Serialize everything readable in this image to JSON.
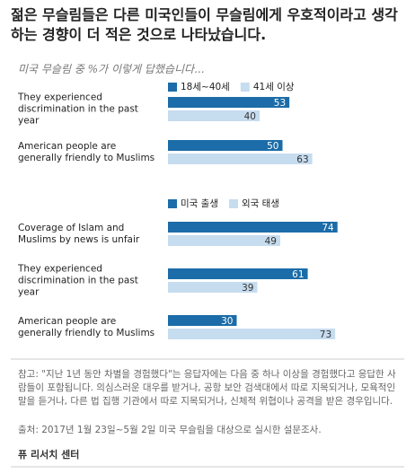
{
  "header": {
    "title": "젊은 무슬림들은 다른 미국인들이 무슬림에게 우호적이라고 생각하는 경향이 더 적은 것으로 나타났습니다.",
    "subtitle": "미국 무슬림 중 %가 이렇게 답했습니다..."
  },
  "chart_data": [
    {
      "type": "bar",
      "orientation": "horizontal",
      "categories": [
        "They experienced discrimination in the past year",
        "American people are generally friendly to Muslims"
      ],
      "series": [
        {
          "name": "18세~40세",
          "color": "#1b6ca8",
          "values": [
            53,
            50
          ]
        },
        {
          "name": "41세 이상",
          "color": "#c6dcef",
          "values": [
            40,
            63
          ]
        }
      ]
    },
    {
      "type": "bar",
      "orientation": "horizontal",
      "categories": [
        "Coverage of Islam and Muslims by news is unfair",
        "They experienced discrimination in the past year",
        "American people are generally friendly to Muslims"
      ],
      "series": [
        {
          "name": "미국 출생",
          "color": "#1b6ca8",
          "values": [
            74,
            61,
            30
          ]
        },
        {
          "name": "외국 태생",
          "color": "#c6dcef",
          "values": [
            49,
            39,
            73
          ]
        }
      ]
    }
  ],
  "footer": {
    "note": "참고: \"지난 1년 동안 차별을 경험했다\"는 응답자에는 다음 중 하나 이상을 경험했다고 응답한 사람들이 포함됩니다. 의심스러운 대우를 받거나, 공항 보안 검색대에서 따로 지목되거나, 모욕적인 말을 듣거나, 다른 법 집행 기관에서 따로 지목되거나, 신체적 위협이나 공격을 받은 경우입니다.",
    "source": "출처: 2017년 1월 23일~5월 2일 미국 무슬림을 대상으로 실시한 설문조사.",
    "credit": "퓨 리서치 센터"
  }
}
